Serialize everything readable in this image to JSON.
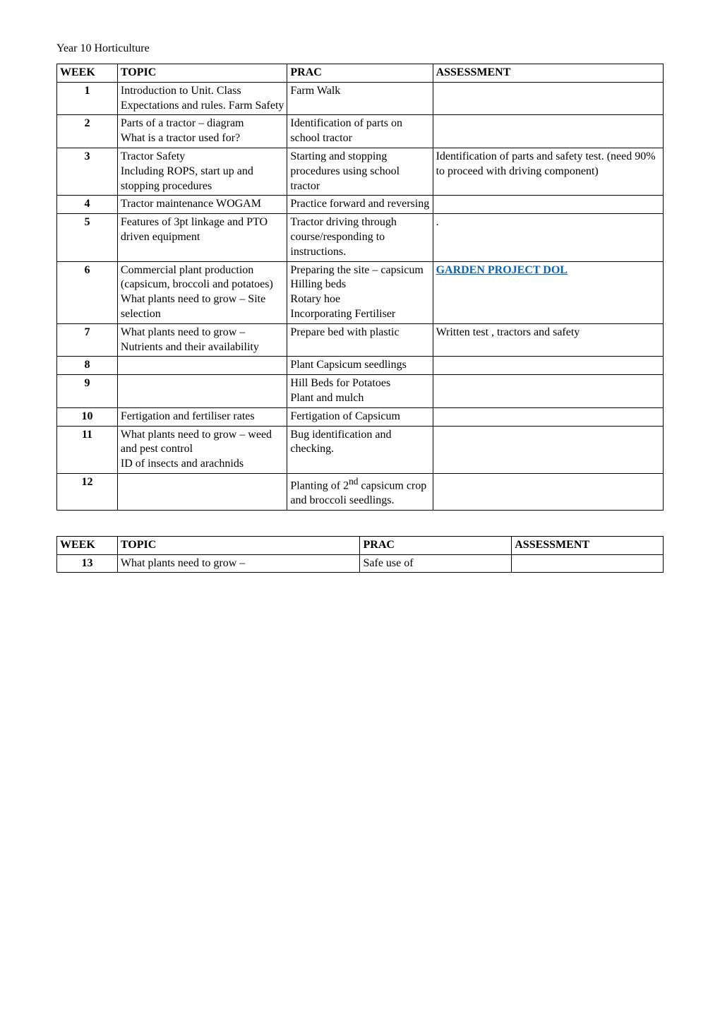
{
  "heading": "Year 10 Horticulture",
  "colors": {
    "text": "#000000",
    "link": "#0563c1",
    "border": "#000000",
    "background": "#ffffff"
  },
  "main_table": {
    "headers": {
      "week": "WEEK",
      "topic": "TOPIC",
      "prac": "PRAC",
      "assess": "ASSESSMENT"
    },
    "rows": [
      {
        "week": "1",
        "topic": "Introduction to Unit. Class Expectations and rules. Farm Safety",
        "prac": "Farm Walk",
        "assess": ""
      },
      {
        "week": "2",
        "topic": "Parts of a tractor – diagram\nWhat is a tractor used for?",
        "prac": "Identification of parts on school tractor",
        "assess": ""
      },
      {
        "week": "3",
        "topic": "Tractor Safety\nIncluding ROPS, start up and stopping procedures",
        "prac": "Starting and stopping procedures using school tractor",
        "assess": "Identification of parts and safety test. (need 90% to proceed with driving component)"
      },
      {
        "week": "4",
        "topic": "Tractor maintenance WOGAM",
        "prac": "Practice forward and reversing",
        "assess": ""
      },
      {
        "week": "5",
        "topic": "Features of 3pt linkage and PTO driven equipment",
        "prac": "Tractor driving through course/responding to instructions.",
        "assess": "."
      },
      {
        "week": "6",
        "topic": "Commercial plant production (capsicum, broccoli and potatoes)\nWhat plants need to grow – Site selection",
        "prac": "Preparing the site – capsicum\nHilling beds\nRotary hoe\nIncorporating Fertiliser",
        "assess_link": "GARDEN PROJECT DOL"
      },
      {
        "week": "7",
        "topic": "What plants need to grow – Nutrients and their availability",
        "prac": "Prepare bed with plastic",
        "assess": "Written test , tractors and safety"
      },
      {
        "week": "8",
        "topic": "",
        "prac": "Plant Capsicum seedlings",
        "assess": ""
      },
      {
        "week": "9",
        "topic": "",
        "prac": "Hill Beds for Potatoes\nPlant and mulch",
        "assess": ""
      },
      {
        "week": "10",
        "topic": "Fertigation and fertiliser rates",
        "prac": "Fertigation of Capsicum",
        "assess": ""
      },
      {
        "week": "11",
        "topic": "What plants need to grow – weed and pest control\nID of insects and arachnids",
        "prac": "Bug identification and checking.",
        "assess": ""
      },
      {
        "week": "12",
        "topic": "",
        "prac": "Planting of 2nd capsicum crop and broccoli seedlings.",
        "assess": ""
      }
    ]
  },
  "second_table": {
    "headers": {
      "week": "WEEK",
      "topic": "TOPIC",
      "prac": "PRAC",
      "assess": "ASSESSMENT"
    },
    "rows": [
      {
        "week": "13",
        "topic": "What plants need to grow –",
        "prac": "Safe use of",
        "assess": ""
      }
    ]
  }
}
